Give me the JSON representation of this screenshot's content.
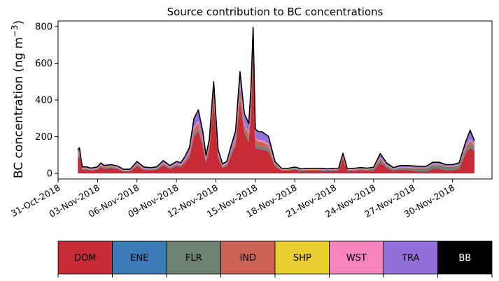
{
  "chart_data": {
    "type": "area",
    "stacked": true,
    "title": "Source contribution to BC concentrations",
    "ylabel_text": "BC concentration (ng m",
    "ylabel_exp": "−3",
    "ylabel_close": ")",
    "ylim": [
      -30,
      830
    ],
    "y_ticks": [
      0,
      200,
      400,
      600,
      800
    ],
    "x_start": "2018-10-31",
    "x_end": "2018-12-03",
    "x_ticks": [
      {
        "date": "2018-10-31",
        "label": "31-Oct-2018"
      },
      {
        "date": "2018-11-03",
        "label": "03-Nov-2018"
      },
      {
        "date": "2018-11-06",
        "label": "06-Nov-2018"
      },
      {
        "date": "2018-11-09",
        "label": "09-Nov-2018"
      },
      {
        "date": "2018-11-12",
        "label": "12-Nov-2018"
      },
      {
        "date": "2018-11-15",
        "label": "15-Nov-2018"
      },
      {
        "date": "2018-11-18",
        "label": "18-Nov-2018"
      },
      {
        "date": "2018-11-21",
        "label": "21-Nov-2018"
      },
      {
        "date": "2018-11-24",
        "label": "24-Nov-2018"
      },
      {
        "date": "2018-11-27",
        "label": "27-Nov-2018"
      },
      {
        "date": "2018-11-30",
        "label": "30-Nov-2018"
      }
    ],
    "x_dates": [
      "2018-11-01T12:00",
      "2018-11-01T15:00",
      "2018-11-01T20:00",
      "2018-11-02T04:00",
      "2018-11-02T12:00",
      "2018-11-03T00:00",
      "2018-11-03T06:00",
      "2018-11-03T12:00",
      "2018-11-04T00:00",
      "2018-11-04T12:00",
      "2018-11-05T00:00",
      "2018-11-05T12:00",
      "2018-11-06T00:00",
      "2018-11-06T12:00",
      "2018-11-07T00:00",
      "2018-11-07T12:00",
      "2018-11-08T00:00",
      "2018-11-08T12:00",
      "2018-11-09T00:00",
      "2018-11-09T08:00",
      "2018-11-09T16:00",
      "2018-11-10T00:00",
      "2018-11-10T08:00",
      "2018-11-10T16:00",
      "2018-11-11T00:00",
      "2018-11-11T06:00",
      "2018-11-11T12:00",
      "2018-11-11T20:00",
      "2018-11-12T04:00",
      "2018-11-12T12:00",
      "2018-11-12T20:00",
      "2018-11-13T04:00",
      "2018-11-13T12:00",
      "2018-11-13T20:00",
      "2018-11-14T04:00",
      "2018-11-14T12:00",
      "2018-11-14T16:00",
      "2018-11-14T20:00",
      "2018-11-15T00:00",
      "2018-11-15T06:00",
      "2018-11-15T12:00",
      "2018-11-16T00:00",
      "2018-11-16T12:00",
      "2018-11-17T00:00",
      "2018-11-17T12:00",
      "2018-11-18T00:00",
      "2018-11-18T12:00",
      "2018-11-19T00:00",
      "2018-11-19T12:00",
      "2018-11-20T00:00",
      "2018-11-20T12:00",
      "2018-11-21T00:00",
      "2018-11-21T08:00",
      "2018-11-21T16:00",
      "2018-11-22T00:00",
      "2018-11-22T12:00",
      "2018-11-23T00:00",
      "2018-11-23T12:00",
      "2018-11-24T00:00",
      "2018-11-24T12:00",
      "2018-11-25T00:00",
      "2018-11-25T12:00",
      "2018-11-26T00:00",
      "2018-11-26T12:00",
      "2018-11-27T00:00",
      "2018-11-27T12:00",
      "2018-11-28T00:00",
      "2018-11-28T12:00",
      "2018-11-29T00:00",
      "2018-11-29T12:00",
      "2018-11-30T00:00",
      "2018-11-30T12:00",
      "2018-12-01T00:00",
      "2018-12-01T08:00",
      "2018-12-01T16:00"
    ],
    "series": [
      {
        "name": "DOM",
        "color": "#c62b36",
        "values": [
          80,
          90,
          20,
          20,
          15,
          20,
          35,
          25,
          30,
          25,
          10,
          12,
          40,
          20,
          15,
          20,
          45,
          25,
          40,
          35,
          60,
          90,
          200,
          230,
          150,
          60,
          130,
          400,
          90,
          30,
          40,
          100,
          150,
          400,
          220,
          170,
          330,
          630,
          140,
          130,
          130,
          120,
          40,
          15,
          15,
          20,
          12,
          15,
          15,
          15,
          12,
          15,
          15,
          80,
          12,
          15,
          15,
          15,
          15,
          60,
          30,
          15,
          20,
          20,
          15,
          10,
          10,
          25,
          25,
          18,
          18,
          25,
          110,
          140,
          120
        ]
      },
      {
        "name": "ENE",
        "color": "#3a7bb8",
        "values": [
          3,
          3,
          2,
          2,
          2,
          2,
          2,
          2,
          2,
          2,
          2,
          2,
          2,
          2,
          2,
          2,
          2,
          2,
          2,
          2,
          2,
          3,
          3,
          3,
          3,
          2,
          2,
          3,
          2,
          2,
          2,
          2,
          3,
          3,
          3,
          3,
          3,
          3,
          3,
          3,
          3,
          3,
          2,
          2,
          2,
          2,
          2,
          2,
          2,
          2,
          2,
          2,
          2,
          2,
          2,
          2,
          2,
          2,
          2,
          2,
          2,
          2,
          2,
          2,
          2,
          2,
          2,
          2,
          2,
          2,
          2,
          2,
          3,
          3,
          3
        ]
      },
      {
        "name": "FLR",
        "color": "#6e8070",
        "values": [
          6,
          6,
          3,
          3,
          3,
          3,
          4,
          3,
          3,
          3,
          2,
          2,
          4,
          3,
          3,
          3,
          4,
          3,
          4,
          4,
          6,
          8,
          12,
          12,
          10,
          6,
          8,
          15,
          6,
          4,
          5,
          8,
          12,
          20,
          15,
          15,
          20,
          25,
          15,
          15,
          15,
          12,
          5,
          3,
          3,
          3,
          3,
          3,
          3,
          3,
          3,
          3,
          3,
          5,
          3,
          3,
          5,
          3,
          8,
          12,
          8,
          5,
          8,
          8,
          10,
          15,
          15,
          18,
          18,
          15,
          15,
          15,
          15,
          18,
          15
        ]
      },
      {
        "name": "IND",
        "color": "#cc6356",
        "values": [
          10,
          12,
          3,
          3,
          2,
          3,
          5,
          4,
          4,
          3,
          2,
          2,
          6,
          3,
          3,
          3,
          6,
          4,
          6,
          5,
          8,
          12,
          25,
          30,
          20,
          8,
          15,
          40,
          10,
          4,
          5,
          12,
          20,
          50,
          30,
          25,
          40,
          60,
          30,
          25,
          25,
          20,
          6,
          2,
          2,
          3,
          2,
          2,
          2,
          2,
          2,
          2,
          2,
          8,
          2,
          2,
          2,
          2,
          2,
          10,
          4,
          2,
          3,
          3,
          2,
          2,
          2,
          4,
          4,
          3,
          3,
          4,
          15,
          18,
          15
        ]
      },
      {
        "name": "SHP",
        "color": "#e8cf2f",
        "values": [
          1,
          1,
          1,
          1,
          1,
          1,
          1,
          1,
          1,
          1,
          1,
          1,
          1,
          1,
          1,
          1,
          1,
          1,
          1,
          1,
          1,
          1,
          1,
          1,
          1,
          1,
          1,
          1,
          1,
          1,
          1,
          1,
          1,
          1,
          1,
          1,
          1,
          1,
          1,
          1,
          1,
          1,
          1,
          1,
          1,
          1,
          1,
          1,
          1,
          1,
          1,
          1,
          1,
          1,
          1,
          1,
          1,
          1,
          1,
          1,
          1,
          1,
          1,
          1,
          1,
          1,
          1,
          1,
          1,
          1,
          1,
          1,
          1,
          1,
          1
        ]
      },
      {
        "name": "WST",
        "color": "#f583be",
        "values": [
          3,
          3,
          1,
          1,
          1,
          1,
          2,
          1,
          1,
          1,
          1,
          1,
          2,
          1,
          1,
          1,
          2,
          1,
          2,
          2,
          3,
          4,
          8,
          10,
          6,
          3,
          5,
          10,
          3,
          2,
          2,
          4,
          6,
          15,
          8,
          8,
          10,
          15,
          8,
          8,
          8,
          6,
          2,
          1,
          1,
          1,
          1,
          1,
          1,
          1,
          1,
          1,
          1,
          2,
          1,
          1,
          1,
          1,
          1,
          3,
          1,
          1,
          1,
          1,
          1,
          1,
          1,
          1,
          1,
          1,
          1,
          1,
          4,
          5,
          4
        ]
      },
      {
        "name": "TRA",
        "color": "#9370db",
        "values": [
          25,
          25,
          6,
          6,
          5,
          6,
          8,
          7,
          7,
          6,
          4,
          4,
          10,
          6,
          6,
          6,
          10,
          7,
          10,
          9,
          15,
          25,
          50,
          60,
          40,
          18,
          25,
          30,
          20,
          9,
          10,
          25,
          40,
          65,
          50,
          50,
          60,
          60,
          45,
          45,
          45,
          40,
          8,
          4,
          4,
          5,
          4,
          4,
          4,
          4,
          4,
          4,
          4,
          12,
          4,
          4,
          6,
          5,
          5,
          20,
          10,
          6,
          8,
          8,
          10,
          8,
          8,
          10,
          10,
          8,
          8,
          10,
          25,
          50,
          20
        ]
      },
      {
        "name": "BB",
        "color": "#000000",
        "values": [
          0,
          0,
          0,
          0,
          0,
          0,
          0,
          0,
          0,
          0,
          0,
          0,
          0,
          0,
          0,
          0,
          0,
          0,
          0,
          0,
          0,
          0,
          0,
          0,
          0,
          0,
          0,
          0,
          0,
          0,
          0,
          0,
          0,
          0,
          0,
          0,
          0,
          0,
          0,
          0,
          0,
          0,
          0,
          0,
          0,
          0,
          0,
          0,
          0,
          0,
          0,
          0,
          0,
          0,
          0,
          0,
          0,
          0,
          0,
          0,
          0,
          0,
          0,
          0,
          0,
          0,
          0,
          0,
          0,
          0,
          0,
          0,
          0,
          0,
          0
        ]
      }
    ],
    "total_line_color": "#000000",
    "grid": false,
    "legend": {
      "placement": "bottom",
      "items": [
        {
          "label": "DOM",
          "color": "#c62b36",
          "text_color": "#000000"
        },
        {
          "label": "ENE",
          "color": "#3a7bb8",
          "text_color": "#000000"
        },
        {
          "label": "FLR",
          "color": "#6e8070",
          "text_color": "#000000"
        },
        {
          "label": "IND",
          "color": "#cc6356",
          "text_color": "#000000"
        },
        {
          "label": "SHP",
          "color": "#e8cf2f",
          "text_color": "#000000"
        },
        {
          "label": "WST",
          "color": "#f583be",
          "text_color": "#000000"
        },
        {
          "label": "TRA",
          "color": "#9370db",
          "text_color": "#000000"
        },
        {
          "label": "BB",
          "color": "#000000",
          "text_color": "#ffffff"
        }
      ]
    }
  }
}
